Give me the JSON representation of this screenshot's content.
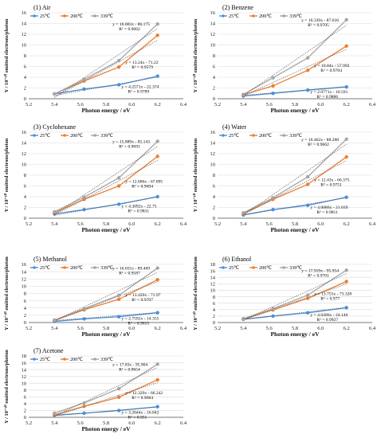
{
  "figure": {
    "colors": {
      "25C": "#4a90d9",
      "200C": "#ed7d31",
      "339C": "#a5a5a5"
    },
    "legend": [
      "25℃",
      "200℃",
      "339℃"
    ]
  },
  "chart_data": [
    {
      "type": "line",
      "title": "(1) Air",
      "xlabel": "Photon energy / eV",
      "ylabel": "Y / 10⁻¹⁰ emitted electrons/photon",
      "xlim": [
        5.2,
        6.4
      ],
      "ylim": [
        0,
        16
      ],
      "xticks": [
        "5.2",
        "5.4",
        "5.6",
        "5.8",
        "6.0",
        "6.2",
        "6.4"
      ],
      "yticks": [
        "0",
        "2",
        "4",
        "6",
        "8",
        "10",
        "12",
        "14",
        "16"
      ],
      "x": [
        5.4,
        5.63,
        5.9,
        6.2
      ],
      "series": [
        {
          "name": "25℃",
          "values": [
            0.9,
            1.8,
            2.6,
            4.2
          ],
          "equation": "y = 4.2571x - 22.374",
          "r2": "R² = 0.9789"
        },
        {
          "name": "200℃",
          "values": [
            0.9,
            3.3,
            5.9,
            11.8
          ],
          "equation": "y = 13.24x - 71.22",
          "r2": "R² = 0.9579"
        },
        {
          "name": "339℃",
          "values": [
            0.9,
            3.6,
            7.1,
            13.9
          ],
          "equation": "y = 16.003x - 86.175",
          "r2": "R² = 0.9662"
        }
      ]
    },
    {
      "type": "line",
      "title": "(2) Benzene",
      "xlabel": "Photon energy / eV",
      "ylabel": "Y / 10⁻¹⁰ emitted electrons/photon",
      "xlim": [
        5.2,
        6.4
      ],
      "ylim": [
        0,
        16
      ],
      "xticks": [
        "5.2",
        "5.4",
        "5.6",
        "5.8",
        "6.0",
        "6.2",
        "6.4"
      ],
      "yticks": [
        "0",
        "2",
        "4",
        "6",
        "8",
        "10",
        "12",
        "14",
        "16"
      ],
      "x": [
        5.4,
        5.63,
        5.9,
        6.2
      ],
      "series": [
        {
          "name": "25℃",
          "values": [
            0.5,
            1.0,
            1.6,
            2.2
          ],
          "equation": "y = 2.0771x - 10.591",
          "r2": "R² = 0.9886"
        },
        {
          "name": "200℃",
          "values": [
            0.7,
            2.4,
            5.3,
            9.8
          ],
          "equation": "y = 10.84x - 57.992",
          "r2": "R² = 0.9704"
        },
        {
          "name": "339℃",
          "values": [
            0.8,
            3.9,
            7.6,
            14.7
          ],
          "equation": "y = 16.339x - 87.616",
          "r2": "R² = 0.9705"
        }
      ]
    },
    {
      "type": "line",
      "title": "(3) Cyclohexane",
      "xlabel": "Photon energy / eV",
      "ylabel": "Y / 10⁻¹⁰ emitted electrons/photon",
      "xlim": [
        5.2,
        6.4
      ],
      "ylim": [
        0,
        16
      ],
      "xticks": [
        "5.2",
        "5.4",
        "5.6",
        "5.8",
        "6.0",
        "6.2",
        "6.4"
      ],
      "yticks": [
        "0",
        "2",
        "4",
        "6",
        "8",
        "10",
        "12",
        "14",
        "16"
      ],
      "x": [
        5.4,
        5.63,
        5.9,
        6.2
      ],
      "series": [
        {
          "name": "25℃",
          "values": [
            0.8,
            1.6,
            2.6,
            4.0
          ],
          "equation": "y = 4.3092x - 22.75",
          "r2": "R² = 0.9831"
        },
        {
          "name": "200℃",
          "values": [
            1.0,
            3.5,
            6.0,
            11.5
          ],
          "equation": "y = 12.686x - 67.895",
          "r2": "R² = 0.9694"
        },
        {
          "name": "339℃",
          "values": [
            1.2,
            3.9,
            7.5,
            14.3
          ],
          "equation": "y = 15.889x - 85.143",
          "r2": "R² = 0.9691"
        }
      ]
    },
    {
      "type": "line",
      "title": "(4) Water",
      "xlabel": "Photon energy / eV",
      "ylabel": "Y / 10⁻¹⁰ emitted electrons/photon",
      "xlim": [
        5.2,
        6.4
      ],
      "ylim": [
        0,
        16
      ],
      "xticks": [
        "5.2",
        "5.4",
        "5.6",
        "5.8",
        "6.0",
        "6.2",
        "6.4"
      ],
      "yticks": [
        "0",
        "2",
        "4",
        "6",
        "8",
        "10",
        "12",
        "14",
        "16"
      ],
      "x": [
        5.4,
        5.63,
        5.9,
        6.2
      ],
      "series": [
        {
          "name": "25℃",
          "values": [
            0.6,
            1.6,
            2.4,
            3.9
          ],
          "equation": "y = 4.0086x - 21.039",
          "r2": "R² = 0.9811"
        },
        {
          "name": "200℃",
          "values": [
            0.8,
            3.5,
            6.3,
            11.4
          ],
          "equation": "y = 12.43x - 66.375",
          "r2": "R² = 0.9751"
        },
        {
          "name": "339℃",
          "values": [
            1.0,
            3.8,
            7.7,
            14.7
          ],
          "equation": "y = 16.462x - 88.288",
          "r2": "R² = 0.9662"
        }
      ]
    },
    {
      "type": "line",
      "title": "(5) Methanol",
      "xlabel": "Photon energy / eV",
      "ylabel": "Y / 10⁻¹⁰ emitted electrons/photon",
      "xlim": [
        5.2,
        6.4
      ],
      "ylim": [
        0,
        16
      ],
      "xticks": [
        "5.2",
        "5.4",
        "5.6",
        "5.8",
        "6.0",
        "6.2",
        "6.4"
      ],
      "yticks": [
        "0",
        "2",
        "4",
        "6",
        "8",
        "10",
        "12",
        "14",
        "16"
      ],
      "x": [
        5.4,
        5.63,
        5.9,
        6.2
      ],
      "series": [
        {
          "name": "25℃",
          "values": [
            0.3,
            1.0,
            1.6,
            2.7
          ],
          "equation": "y = 2.7592x - 14.355",
          "r2": "R² = 0.9615"
        },
        {
          "name": "200℃",
          "values": [
            0.6,
            3.5,
            6.4,
            11.8
          ],
          "equation": "y = 13.426x - 71.97",
          "r2": "R² = 0.9707"
        },
        {
          "name": "339℃",
          "values": [
            0.7,
            3.8,
            7.5,
            15.0
          ],
          "equation": "y = 16.655x - 89.469",
          "r2": "R² = 0.9587"
        }
      ]
    },
    {
      "type": "line",
      "title": "(6) Ethanol",
      "xlabel": "Photon energy / eV",
      "ylabel": "Y / 10⁻¹⁰ emitted electrons/photon",
      "xlim": [
        5.2,
        6.4
      ],
      "ylim": [
        0,
        18
      ],
      "xticks": [
        "5.2",
        "5.4",
        "5.6",
        "5.8",
        "6.0",
        "6.2",
        "6.4"
      ],
      "yticks": [
        "0",
        "2",
        "4",
        "6",
        "8",
        "10",
        "12",
        "14",
        "16",
        "18"
      ],
      "x": [
        5.4,
        5.63,
        5.9,
        6.2
      ],
      "series": [
        {
          "name": "25℃",
          "values": [
            1.0,
            2.0,
            3.0,
            4.6
          ],
          "equation": "y = 4.6496x - 24.146",
          "r2": "R² = 0.9927"
        },
        {
          "name": "200℃",
          "values": [
            1.0,
            3.9,
            7.5,
            12.7
          ],
          "equation": "y = 13.755x - 73.328",
          "r2": "R² = 0.977"
        },
        {
          "name": "339℃",
          "values": [
            1.2,
            4.3,
            8.5,
            16.2
          ],
          "equation": "y = 17.919x - 95.954",
          "r2": "R² = 0.9701"
        }
      ]
    },
    {
      "type": "line",
      "title": "(7) Acetone",
      "xlabel": "Photon energy / eV",
      "ylabel": "Y / 10⁻¹⁰ emitted electrons/photon",
      "xlim": [
        5.2,
        6.4
      ],
      "ylim": [
        0,
        18
      ],
      "xticks": [
        "5.2",
        "5.4",
        "5.6",
        "5.8",
        "6.0",
        "6.2",
        "6.4"
      ],
      "yticks": [
        "0",
        "2",
        "4",
        "6",
        "8",
        "10",
        "12",
        "14",
        "16",
        "18"
      ],
      "x": [
        5.4,
        5.63,
        5.9,
        6.2
      ],
      "series": [
        {
          "name": "25℃",
          "values": [
            0.6,
            1.2,
            2.0,
            3.1
          ],
          "equation": "y = 3.2044x - 16.842",
          "r2": "R² = 0.951"
        },
        {
          "name": "200℃",
          "values": [
            0.7,
            3.2,
            5.9,
            11.0
          ],
          "equation": "y = 12.329x - 66.242",
          "r2": "R² = 0.9684"
        },
        {
          "name": "339℃",
          "values": [
            1.2,
            4.2,
            8.4,
            15.6
          ],
          "equation": "y = 17.83x - 95.904",
          "r2": "R² = 0.9654"
        }
      ]
    }
  ]
}
